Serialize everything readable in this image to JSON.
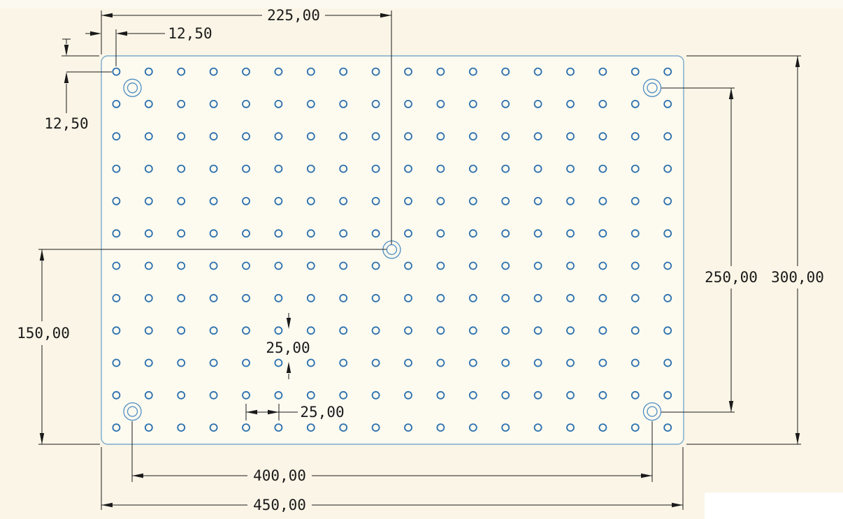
{
  "drawing": {
    "type": "technical-drawing",
    "part": "perforated-plate",
    "grid": {
      "columns": 18,
      "rows": 12,
      "hole_count": 216
    },
    "mounting_holes": {
      "count": 5,
      "positions": [
        "top-left",
        "top-right",
        "bottom-left",
        "bottom-right",
        "center"
      ]
    },
    "dimensions": {
      "plate_width": "450,00",
      "plate_height": "300,00",
      "mount_spacing_x": "400,00",
      "mount_spacing_y": "250,00",
      "center_hole_x": "225,00",
      "center_hole_y": "150,00",
      "edge_margin_left": "12,50",
      "edge_margin_top": "12,50",
      "hole_pitch_x": "25,00",
      "hole_pitch_y": "25,00"
    },
    "colors": {
      "background": "#faf5e6",
      "plate_fill": "#fdfaf0",
      "plate_stroke": "#7aabcd",
      "hole_stroke": "#2b70ad",
      "mount_stroke": "#4e8ec1",
      "dimension": "#1a1a1a",
      "patch": "#ffffff"
    }
  }
}
